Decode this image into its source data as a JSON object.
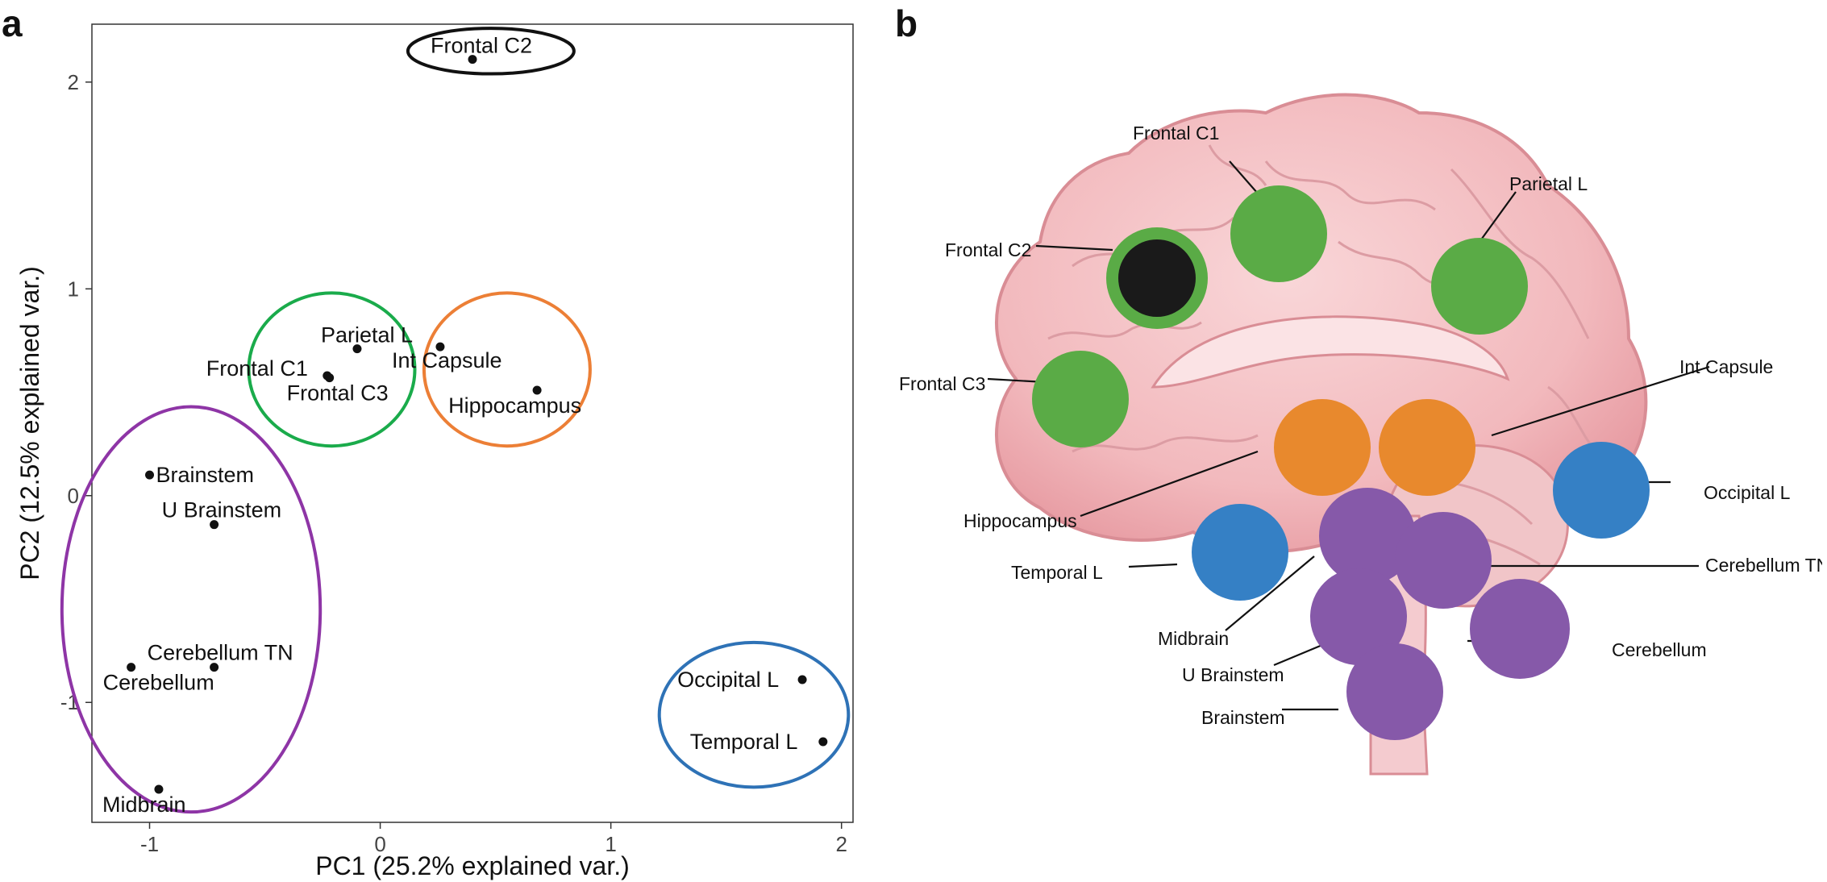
{
  "panels": {
    "a": "a",
    "b": "b"
  },
  "colors": {
    "green": "#1aab4b",
    "orange": "#ec7f36",
    "purple": "#8e35a6",
    "blue": "#2e72b6",
    "black": "#111111",
    "dot_green": "#5aab46",
    "dot_orange": "#e8892d",
    "dot_purple": "#8659a9",
    "dot_blue": "#3580c5",
    "dot_black": "#1a1a1a"
  },
  "chart_data": [
    {
      "type": "scatter",
      "title": "",
      "xlabel": "PC1 (25.2% explained var.)",
      "ylabel": "PC2 (12.5% explained var.)",
      "xlim": [
        -1.25,
        2.05
      ],
      "ylim": [
        -1.58,
        2.28
      ],
      "xticks": [
        -1,
        0,
        1,
        2
      ],
      "yticks": [
        -1,
        0,
        1,
        2
      ],
      "xtick_labels": [
        "-1",
        "0",
        "1",
        "2"
      ],
      "ytick_labels": [
        "-1",
        "0",
        "1",
        "2"
      ],
      "grid": false,
      "points": [
        {
          "label": "Frontal C2",
          "x": 0.4,
          "y": 2.11
        },
        {
          "label": "Parietal L",
          "x": -0.1,
          "y": 0.71
        },
        {
          "label": "Frontal C1",
          "x": -0.23,
          "y": 0.58
        },
        {
          "label": "Frontal C3",
          "x": -0.22,
          "y": 0.57
        },
        {
          "label": "Int Capsule",
          "x": 0.26,
          "y": 0.72
        },
        {
          "label": "Hippocampus",
          "x": 0.68,
          "y": 0.51
        },
        {
          "label": "Brainstem",
          "x": -1.0,
          "y": 0.1
        },
        {
          "label": "U Brainstem",
          "x": -0.72,
          "y": -0.14
        },
        {
          "label": "Cerebellum TN",
          "x": -0.72,
          "y": -0.83
        },
        {
          "label": "Cerebellum",
          "x": -1.08,
          "y": -0.83
        },
        {
          "label": "Midbrain",
          "x": -0.96,
          "y": -1.42
        },
        {
          "label": "Occipital L",
          "x": 1.83,
          "y": -0.89
        },
        {
          "label": "Temporal L",
          "x": 1.92,
          "y": -1.19
        }
      ],
      "clusters": [
        {
          "color": "black",
          "cx": 0.48,
          "cy": 2.15,
          "rx": 0.36,
          "ry": 0.11,
          "members": [
            "Frontal C2"
          ]
        },
        {
          "color": "green",
          "cx": -0.21,
          "cy": 0.61,
          "rx": 0.36,
          "ry": 0.37,
          "members": [
            "Parietal L",
            "Frontal C1",
            "Frontal C3"
          ]
        },
        {
          "color": "orange",
          "cx": 0.55,
          "cy": 0.61,
          "rx": 0.36,
          "ry": 0.37,
          "members": [
            "Int Capsule",
            "Hippocampus"
          ]
        },
        {
          "color": "purple",
          "cx": -0.82,
          "cy": -0.55,
          "rx": 0.56,
          "ry": 0.98,
          "members": [
            "Brainstem",
            "U Brainstem",
            "Cerebellum TN",
            "Cerebellum",
            "Midbrain"
          ]
        },
        {
          "color": "blue",
          "cx": 1.62,
          "cy": -1.06,
          "rx": 0.41,
          "ry": 0.35,
          "members": [
            "Occipital L",
            "Temporal L"
          ]
        }
      ]
    },
    {
      "type": "diagram",
      "title": "",
      "regions": [
        {
          "label": "Frontal C1",
          "color": "green"
        },
        {
          "label": "Parietal L",
          "color": "green"
        },
        {
          "label": "Frontal C2",
          "color": "black"
        },
        {
          "label": "Frontal C3",
          "color": "green"
        },
        {
          "label": "Int Capsule",
          "color": "orange"
        },
        {
          "label": "Hippocampus",
          "color": "orange"
        },
        {
          "label": "Occipital L",
          "color": "blue"
        },
        {
          "label": "Temporal L",
          "color": "blue"
        },
        {
          "label": "Cerebellum TN",
          "color": "purple"
        },
        {
          "label": "Midbrain",
          "color": "purple"
        },
        {
          "label": "Cerebellum",
          "color": "purple"
        },
        {
          "label": "U Brainstem",
          "color": "purple"
        },
        {
          "label": "Brainstem",
          "color": "purple"
        }
      ]
    }
  ]
}
